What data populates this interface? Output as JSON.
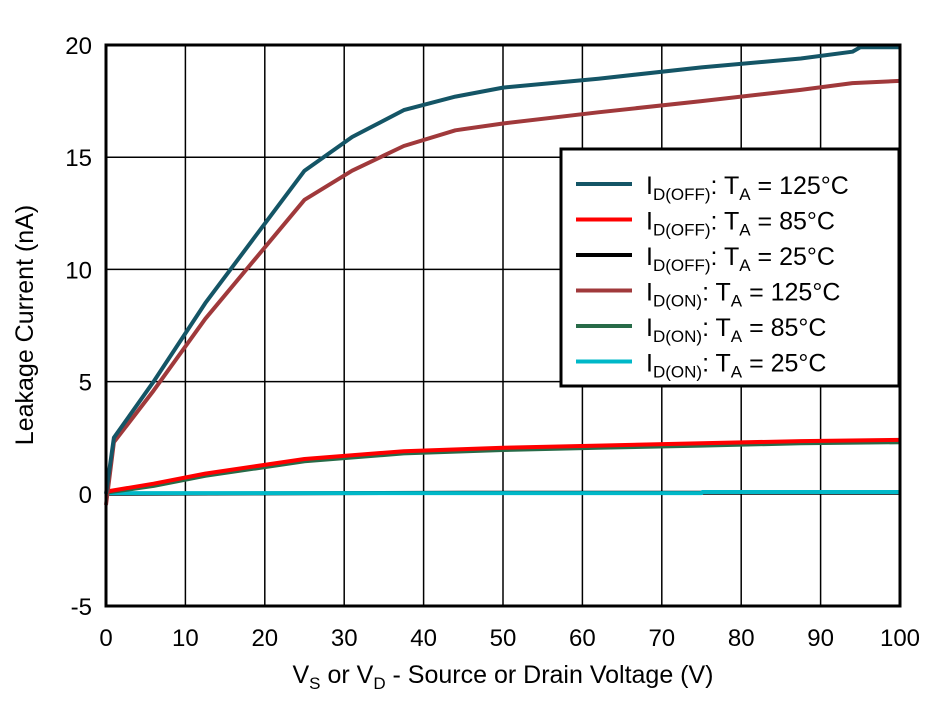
{
  "chart_data": {
    "type": "line",
    "title": "",
    "xlabel": {
      "v1": "V",
      "s1": "S",
      "mid": " or V",
      "s2": "D",
      "rest": " - Source or Drain Voltage (V)"
    },
    "ylabel": "Leakage Current (nA)",
    "xlim": [
      0,
      100
    ],
    "ylim": [
      -5,
      20
    ],
    "xticks": [
      0,
      10,
      20,
      30,
      40,
      50,
      60,
      70,
      80,
      90,
      100
    ],
    "yticks": [
      -5,
      0,
      5,
      10,
      15,
      20
    ],
    "grid": true,
    "legend_placement": "right",
    "series": [
      {
        "name": "I_D(OFF): T_A = 125°C",
        "sub": "D(OFF)",
        "label": ": T",
        "sub2": "A",
        "temp": " = 125°C",
        "color": "#145566",
        "x": [
          0,
          1,
          6,
          12.5,
          25,
          31,
          37.5,
          44,
          50,
          62,
          75,
          87.5,
          94,
          95,
          100
        ],
        "y": [
          0,
          2.5,
          5.0,
          8.5,
          14.4,
          15.9,
          17.1,
          17.7,
          18.1,
          18.5,
          19.0,
          19.4,
          19.7,
          19.9,
          19.9
        ]
      },
      {
        "name": "I_D(OFF): T_A = 85°C",
        "sub": "D(OFF)",
        "label": ": T",
        "sub2": "A",
        "temp": " = 85°C",
        "color": "#ff0000",
        "x": [
          0,
          6,
          12.5,
          25,
          37.5,
          50,
          62,
          75,
          87.5,
          100
        ],
        "y": [
          0.1,
          0.45,
          0.9,
          1.55,
          1.9,
          2.05,
          2.15,
          2.25,
          2.35,
          2.4
        ]
      },
      {
        "name": "I_D(OFF): T_A = 25°C",
        "sub": "D(OFF)",
        "label": ": T",
        "sub2": "A",
        "temp": " = 25°C",
        "color": "#000000",
        "x": [
          0,
          20,
          45,
          100
        ],
        "y": [
          0,
          0.02,
          0.05,
          0.05
        ]
      },
      {
        "name": "I_D(ON): T_A = 125°C",
        "sub": "D(ON)",
        "label": ": T",
        "sub2": "A",
        "temp": " = 125°C",
        "color": "#a0393b",
        "x": [
          0,
          1,
          6,
          12.5,
          25,
          31,
          37.5,
          44,
          50,
          62,
          75,
          87.5,
          94,
          100
        ],
        "y": [
          -0.5,
          2.3,
          4.6,
          7.8,
          13.1,
          14.4,
          15.5,
          16.2,
          16.5,
          17.0,
          17.5,
          18.0,
          18.3,
          18.4
        ]
      },
      {
        "name": "I_D(ON): T_A = 85°C",
        "sub": "D(ON)",
        "label": ": T",
        "sub2": "A",
        "temp": " = 85°C",
        "color": "#276b48",
        "x": [
          0,
          6,
          12.5,
          25,
          37.5,
          50,
          62,
          75,
          87.5,
          100
        ],
        "y": [
          0.05,
          0.35,
          0.8,
          1.45,
          1.8,
          1.95,
          2.05,
          2.15,
          2.25,
          2.3
        ]
      },
      {
        "name": "I_D(ON): T_A = 25°C",
        "sub": "D(ON)",
        "label": ": T",
        "sub2": "A",
        "temp": " = 25°C",
        "color": "#00b8c8",
        "x": [
          0,
          75,
          75.1,
          100
        ],
        "y": [
          0.03,
          0.03,
          0.08,
          0.08
        ]
      }
    ]
  }
}
